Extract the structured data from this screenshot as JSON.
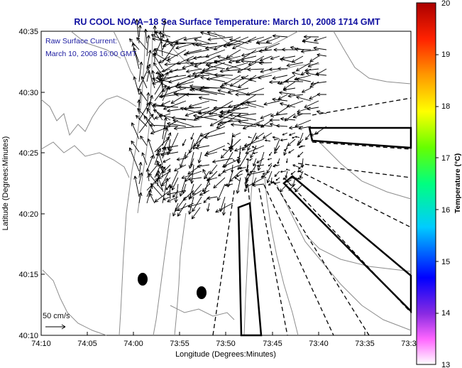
{
  "title": "RU COOL  NOAA−18  Sea Surface Temperature:  March 10, 2008 1714 GMT",
  "annotation": {
    "line1": "Raw Surface Current:",
    "line2": "March 10, 2008 16:00 GMT"
  },
  "scale_label": "50 cm/s",
  "axes": {
    "xlabel": "Longitude (Degrees:Minutes)",
    "ylabel": "Latitude (Degrees:Minutes)",
    "xticks": [
      "74:10",
      "74:05",
      "74:00",
      "73:55",
      "73:50",
      "73:45",
      "73:40",
      "73:35",
      "73:3"
    ],
    "yticks": [
      "40:35",
      "40:30",
      "40:25",
      "40:20",
      "40:15",
      "40:10"
    ]
  },
  "colorbar": {
    "label": "Temperature (°C)",
    "min": 13,
    "max": 20,
    "ticks": [
      "20",
      "19",
      "18",
      "17",
      "16",
      "15",
      "14",
      "13"
    ]
  },
  "colors": {
    "title": "#1010a0",
    "annotation": "#1a1aa0",
    "coast": "#8c8c8c"
  }
}
